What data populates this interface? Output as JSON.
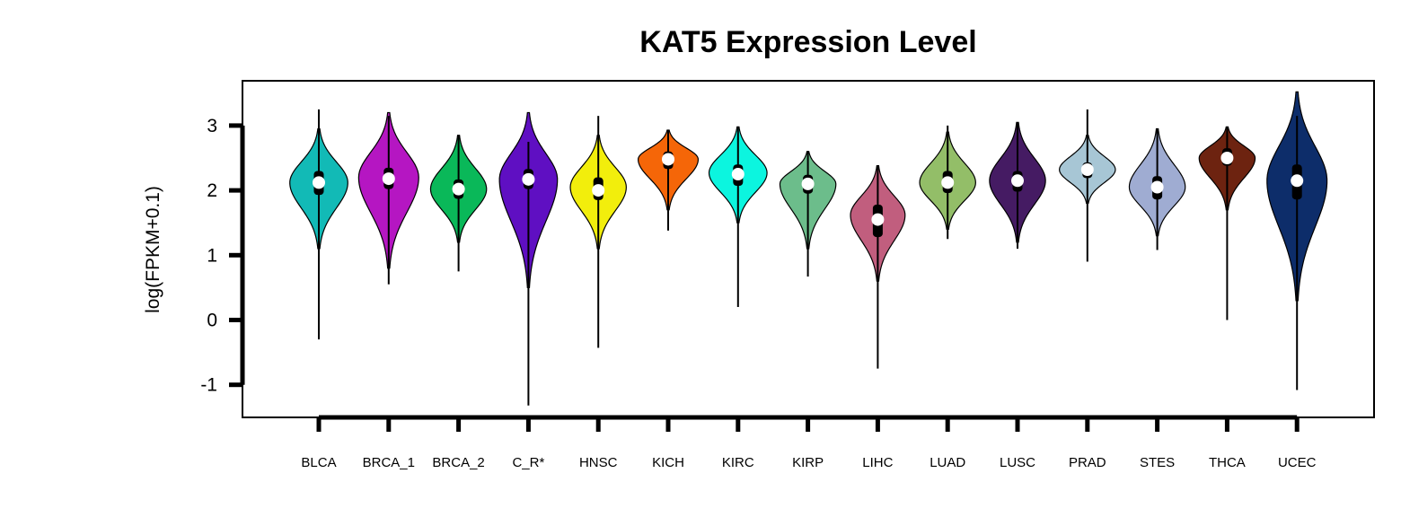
{
  "chart_data": {
    "type": "violin",
    "title": "KAT5 Expression Level",
    "xlabel": "",
    "ylabel": "log(FPKM+0.1)",
    "ylim": [
      -1.5,
      3.5
    ],
    "yticks": [
      -1,
      0,
      1,
      2,
      3
    ],
    "grid": false,
    "legend": "none",
    "categories": [
      "BLCA",
      "BRCA_1",
      "BRCA_2",
      "C_R*",
      "HNSC",
      "KICH",
      "KIRC",
      "KIRP",
      "LIHC",
      "LUAD",
      "LUSC",
      "PRAD",
      "STES",
      "THCA",
      "UCEC"
    ],
    "colors": [
      "#12bab6",
      "#b516c2",
      "#0ab859",
      "#5f0fc2",
      "#f2ee0c",
      "#f56608",
      "#0cf5df",
      "#6cbd8b",
      "#c15e7e",
      "#93be68",
      "#451b63",
      "#a7c6d5",
      "#9facd2",
      "#6d2310",
      "#0d2d6a"
    ],
    "violin_min": [
      1.1,
      0.8,
      1.2,
      0.5,
      1.1,
      1.7,
      1.5,
      1.1,
      0.6,
      1.4,
      1.2,
      1.8,
      1.3,
      1.7,
      0.3
    ],
    "violin_max": [
      2.95,
      3.2,
      2.85,
      3.2,
      2.85,
      2.93,
      2.98,
      2.6,
      2.38,
      2.9,
      3.05,
      2.85,
      2.95,
      2.98,
      3.52
    ],
    "whisker_min": [
      -0.3,
      0.55,
      0.75,
      -1.32,
      -0.43,
      1.38,
      0.2,
      0.67,
      -0.75,
      1.25,
      1.1,
      0.9,
      1.08,
      0.0,
      -1.08
    ],
    "whisker_max": [
      3.25,
      3.15,
      2.85,
      2.75,
      3.15,
      2.93,
      2.98,
      2.6,
      2.38,
      3.0,
      3.05,
      3.25,
      2.95,
      2.98,
      3.15
    ],
    "q1": [
      1.93,
      2.02,
      1.87,
      2.02,
      1.85,
      2.33,
      2.07,
      1.95,
      1.28,
      1.96,
      1.98,
      2.19,
      1.86,
      2.38,
      1.86
    ],
    "q3": [
      2.3,
      2.35,
      2.17,
      2.33,
      2.2,
      2.6,
      2.4,
      2.24,
      1.78,
      2.3,
      2.3,
      2.43,
      2.22,
      2.65,
      2.4
    ],
    "median": [
      2.12,
      2.18,
      2.02,
      2.17,
      2.0,
      2.48,
      2.25,
      2.1,
      1.55,
      2.12,
      2.15,
      2.32,
      2.05,
      2.5,
      2.15
    ],
    "mode": [
      2.12,
      2.2,
      2.02,
      2.17,
      2.05,
      2.48,
      2.27,
      2.1,
      1.62,
      2.12,
      2.15,
      2.32,
      2.05,
      2.5,
      2.15
    ],
    "max_density_width": [
      0.85,
      0.88,
      0.82,
      0.85,
      0.82,
      0.88,
      0.85,
      0.82,
      0.8,
      0.82,
      0.82,
      0.82,
      0.82,
      0.82,
      0.88
    ]
  }
}
